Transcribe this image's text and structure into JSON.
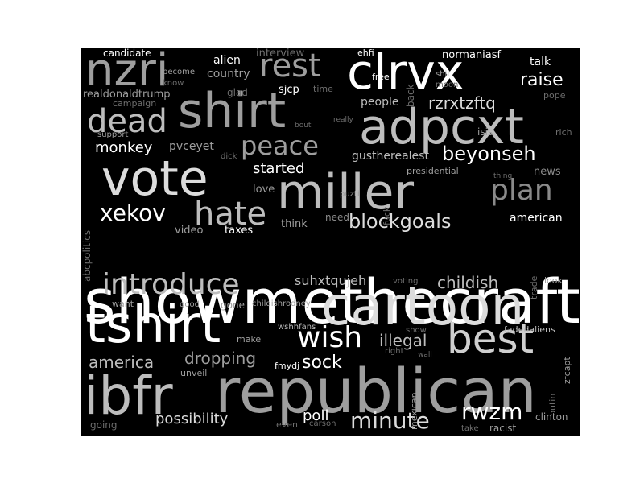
{
  "background": "#000000",
  "page_background": "#ffffff",
  "palette": [
    "#ffffff",
    "#dcdcdc",
    "#bdbdbd",
    "#9e9e9e",
    "#8a8a8a",
    "#6e6e6e"
  ],
  "words": [
    {
      "text": "showmethecraft",
      "color": "#ffffff"
    },
    {
      "text": "republican",
      "color": "#9e9e9e"
    },
    {
      "text": "ibfr",
      "color": "#bdbdbd"
    },
    {
      "text": "cartoon",
      "color": "#dcdcdc"
    },
    {
      "text": "tshirt",
      "color": "#ffffff"
    },
    {
      "text": "vote",
      "color": "#dcdcdc"
    },
    {
      "text": "miller",
      "color": "#bdbdbd"
    },
    {
      "text": "adpcxt",
      "color": "#bdbdbd"
    },
    {
      "text": "shirt",
      "color": "#9e9e9e"
    },
    {
      "text": "clrvx",
      "color": "#ffffff"
    },
    {
      "text": "nzri",
      "color": "#9e9e9e"
    },
    {
      "text": "best",
      "color": "#cfcfcf"
    },
    {
      "text": "introduce",
      "color": "#bdbdbd"
    },
    {
      "text": "hate",
      "color": "#bdbdbd"
    },
    {
      "text": "rest",
      "color": "#9e9e9e"
    },
    {
      "text": "dead",
      "color": "#bdbdbd"
    },
    {
      "text": "plan",
      "color": "#8a8a8a"
    },
    {
      "text": "peace",
      "color": "#9e9e9e"
    },
    {
      "text": "wish",
      "color": "#ffffff"
    },
    {
      "text": "rwzm",
      "color": "#ffffff"
    },
    {
      "text": "minute",
      "color": "#dcdcdc"
    },
    {
      "text": "xekov",
      "color": "#ffffff"
    },
    {
      "text": "beyonseh",
      "color": "#ffffff"
    },
    {
      "text": "blockgoals",
      "color": "#dcdcdc"
    },
    {
      "text": "childish",
      "color": "#bdbdbd"
    },
    {
      "text": "raise",
      "color": "#ffffff"
    },
    {
      "text": "rzrxtzftq",
      "color": "#dcdcdc"
    },
    {
      "text": "monkey",
      "color": "#ffffff"
    },
    {
      "text": "dropping",
      "color": "#9e9e9e"
    },
    {
      "text": "america",
      "color": "#bdbdbd"
    },
    {
      "text": "sock",
      "color": "#ffffff"
    },
    {
      "text": "illegal",
      "color": "#bdbdbd"
    },
    {
      "text": "possibility",
      "color": "#dcdcdc"
    },
    {
      "text": "poll",
      "color": "#ffffff"
    },
    {
      "text": "started",
      "color": "#ffffff"
    },
    {
      "text": "suhxtqujeh",
      "color": "#bdbdbd"
    },
    {
      "text": "people",
      "color": "#bdbdbd"
    },
    {
      "text": "gustherealest",
      "color": "#bdbdbd"
    },
    {
      "text": "pvceyet",
      "color": "#9e9e9e"
    },
    {
      "text": "country",
      "color": "#9e9e9e"
    },
    {
      "text": "alien",
      "color": "#ffffff"
    },
    {
      "text": "interview",
      "color": "#6e6e6e"
    },
    {
      "text": "candidate",
      "color": "#ffffff"
    },
    {
      "text": "talk",
      "color": "#ffffff"
    },
    {
      "text": "normaniasf",
      "color": "#ffffff"
    },
    {
      "text": "ehfi",
      "color": "#ffffff"
    },
    {
      "text": "sjcp",
      "color": "#ffffff"
    },
    {
      "text": "glad",
      "color": "#6e6e6e"
    },
    {
      "text": "time",
      "color": "#6e6e6e"
    },
    {
      "text": "free",
      "color": "#ffffff"
    },
    {
      "text": "back",
      "color": "#6e6e6e"
    },
    {
      "text": "shit",
      "color": "#9e9e9e"
    },
    {
      "text": "moon",
      "color": "#6e6e6e"
    },
    {
      "text": "pope",
      "color": "#6e6e6e"
    },
    {
      "text": "realdonaldtrump",
      "color": "#9e9e9e"
    },
    {
      "text": "campaign",
      "color": "#6e6e6e"
    },
    {
      "text": "become",
      "color": "#9e9e9e"
    },
    {
      "text": "know",
      "color": "#6e6e6e"
    },
    {
      "text": "support",
      "color": "#9e9e9e"
    },
    {
      "text": "bout",
      "color": "#6e6e6e"
    },
    {
      "text": "really",
      "color": "#6e6e6e"
    },
    {
      "text": "isis",
      "color": "#9e9e9e"
    },
    {
      "text": "rich",
      "color": "#6e6e6e"
    },
    {
      "text": "dick",
      "color": "#6e6e6e"
    },
    {
      "text": "news",
      "color": "#8a8a8a"
    },
    {
      "text": "presidential",
      "color": "#9e9e9e"
    },
    {
      "text": "thing",
      "color": "#6e6e6e"
    },
    {
      "text": "love",
      "color": "#9e9e9e"
    },
    {
      "text": "puzti",
      "color": "#9e9e9e"
    },
    {
      "text": "fuck",
      "color": "#6e6e6e"
    },
    {
      "text": "abcpolitics",
      "color": "#6e6e6e"
    },
    {
      "text": "think",
      "color": "#9e9e9e"
    },
    {
      "text": "need",
      "color": "#8a8a8a"
    },
    {
      "text": "american",
      "color": "#ffffff"
    },
    {
      "text": "video",
      "color": "#9e9e9e"
    },
    {
      "text": "taxes",
      "color": "#ffffff"
    },
    {
      "text": "trade",
      "color": "#6e6e6e"
    },
    {
      "text": "voting",
      "color": "#6e6e6e"
    },
    {
      "text": "look",
      "color": "#9e9e9e"
    },
    {
      "text": "want",
      "color": "#9e9e9e"
    },
    {
      "text": "good",
      "color": "#9e9e9e"
    },
    {
      "text": "gone",
      "color": "#9e9e9e"
    },
    {
      "text": "childishrodney",
      "color": "#9e9e9e"
    },
    {
      "text": "wshhfans",
      "color": "#bdbdbd"
    },
    {
      "text": "show",
      "color": "#6e6e6e"
    },
    {
      "text": "fadedaliens",
      "color": "#bdbdbd"
    },
    {
      "text": "zfcapt",
      "color": "#9e9e9e"
    },
    {
      "text": "make",
      "color": "#9e9e9e"
    },
    {
      "text": "right",
      "color": "#6e6e6e"
    },
    {
      "text": "wall",
      "color": "#6e6e6e"
    },
    {
      "text": "fmydj",
      "color": "#ffffff"
    },
    {
      "text": "unveil",
      "color": "#9e9e9e"
    },
    {
      "text": "mexican",
      "color": "#9e9e9e"
    },
    {
      "text": "putin",
      "color": "#6e6e6e"
    },
    {
      "text": "going",
      "color": "#6e6e6e"
    },
    {
      "text": "even",
      "color": "#6e6e6e"
    },
    {
      "text": "carson",
      "color": "#6e6e6e"
    },
    {
      "text": "take",
      "color": "#6e6e6e"
    },
    {
      "text": "racist",
      "color": "#9e9e9e"
    },
    {
      "text": "clinton",
      "color": "#9e9e9e"
    }
  ]
}
